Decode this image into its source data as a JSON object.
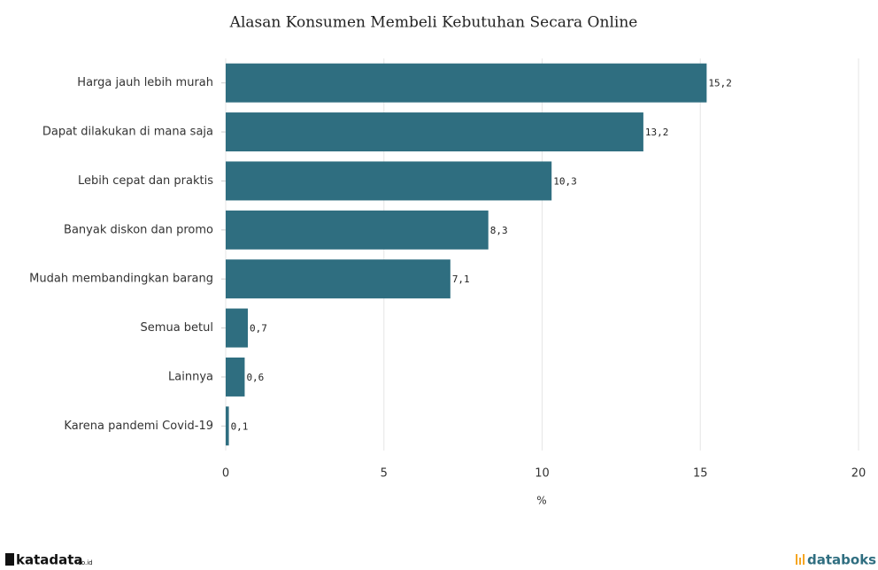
{
  "chart_data": {
    "type": "bar",
    "orientation": "horizontal",
    "title": "Alasan Konsumen Membeli Kebutuhan Secara Online",
    "categories": [
      "Harga jauh lebih murah",
      "Dapat dilakukan di mana saja",
      "Lebih cepat dan praktis",
      "Banyak diskon dan promo",
      "Mudah membandingkan barang",
      "Semua betul",
      "Lainnya",
      "Karena pandemi Covid-19"
    ],
    "values": [
      15.2,
      13.2,
      10.3,
      8.3,
      7.1,
      0.7,
      0.6,
      0.1
    ],
    "value_labels": [
      "15,2",
      "13,2",
      "10,3",
      "8,3",
      "7,1",
      "0,7",
      "0,6",
      "0,1"
    ],
    "color": "#2f6e80",
    "xlim": [
      0,
      20
    ],
    "xticks": [
      0,
      5,
      10,
      15,
      20
    ],
    "xlabel": "%",
    "grid": true
  },
  "footer": {
    "left": "katadata",
    "left_suffix": "co.id",
    "right": "databoks"
  }
}
